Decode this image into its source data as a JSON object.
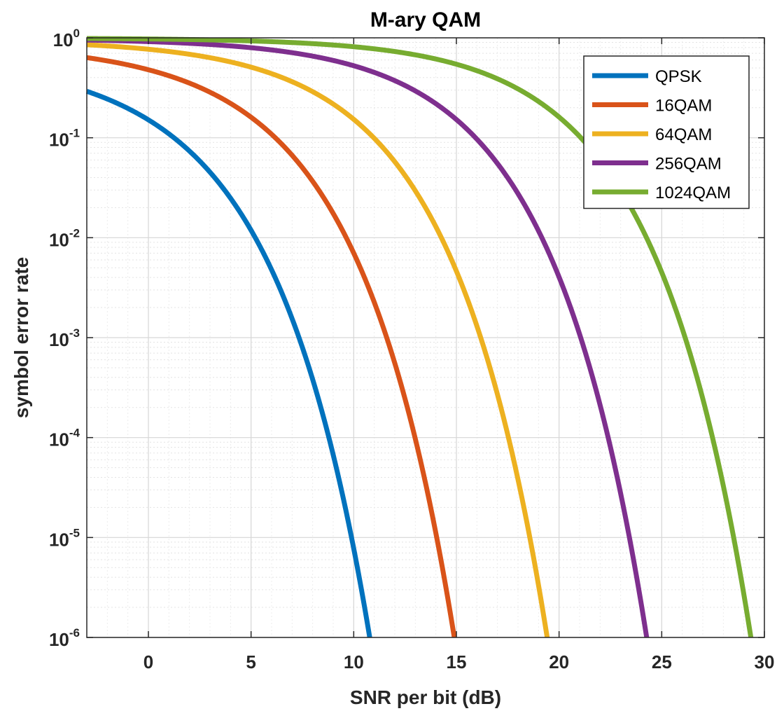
{
  "chart_data": {
    "type": "line",
    "title": "M-ary QAM",
    "xlabel": "SNR per bit (dB)",
    "ylabel": "symbol error rate",
    "xlim": [
      -3,
      30
    ],
    "ylim": [
      1e-06,
      1
    ],
    "yscale": "log",
    "xticks": [
      "0",
      "5",
      "10",
      "15",
      "20",
      "25",
      "30"
    ],
    "yticks": [
      {
        "base": "10",
        "exp": "0"
      },
      {
        "base": "10",
        "exp": "-1"
      },
      {
        "base": "10",
        "exp": "-2"
      },
      {
        "base": "10",
        "exp": "-3"
      },
      {
        "base": "10",
        "exp": "-4"
      },
      {
        "base": "10",
        "exp": "-5"
      },
      {
        "base": "10",
        "exp": "-6"
      }
    ],
    "grid": true,
    "legend_position": "top-right",
    "series": [
      {
        "name": "QPSK",
        "M": 4,
        "color": "#0072BD"
      },
      {
        "name": "16QAM",
        "M": 16,
        "color": "#D95319"
      },
      {
        "name": "64QAM",
        "M": 64,
        "color": "#EDB120"
      },
      {
        "name": "256QAM",
        "M": 256,
        "color": "#7E2F8E"
      },
      {
        "name": "1024QAM",
        "M": 1024,
        "color": "#77AC30"
      }
    ]
  }
}
